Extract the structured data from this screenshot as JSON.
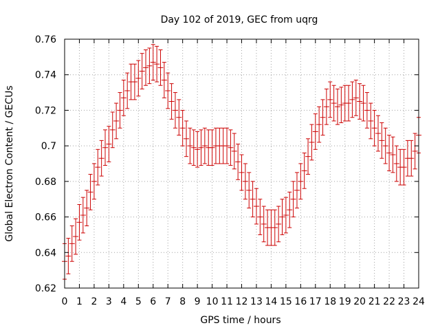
{
  "chart_data": {
    "type": "scatter",
    "title": "Day 102 of 2019, GEC from uqrg",
    "xlabel": "GPS time / hours",
    "ylabel": "Global Electron Content / GECUs",
    "xlim": [
      0,
      24
    ],
    "ylim": [
      0.62,
      0.76
    ],
    "x_ticks": [
      "0",
      "1",
      "2",
      "3",
      "4",
      "5",
      "6",
      "7",
      "8",
      "9",
      "10",
      "11",
      "12",
      "13",
      "14",
      "15",
      "16",
      "17",
      "18",
      "19",
      "20",
      "21",
      "22",
      "23",
      "24"
    ],
    "x_tick_values": [
      0,
      1,
      2,
      3,
      4,
      5,
      6,
      7,
      8,
      9,
      10,
      11,
      12,
      13,
      14,
      15,
      16,
      17,
      18,
      19,
      20,
      21,
      22,
      23,
      24
    ],
    "y_ticks": [
      "0.62",
      "0.64",
      "0.66",
      "0.68",
      "0.7",
      "0.72",
      "0.74",
      "0.76"
    ],
    "y_tick_values": [
      0.62,
      0.64,
      0.66,
      0.68,
      0.7,
      0.72,
      0.74,
      0.76
    ],
    "grid": true,
    "error": 0.01,
    "series": [
      {
        "name": "GEC",
        "color": "#cc0000",
        "x": [
          0,
          0.25,
          0.5,
          0.75,
          1,
          1.25,
          1.5,
          1.75,
          2,
          2.25,
          2.5,
          2.75,
          3,
          3.25,
          3.5,
          3.75,
          4,
          4.25,
          4.5,
          4.75,
          5,
          5.25,
          5.5,
          5.75,
          6,
          6.25,
          6.5,
          6.75,
          7,
          7.25,
          7.5,
          7.75,
          8,
          8.25,
          8.5,
          8.75,
          9,
          9.25,
          9.5,
          9.75,
          10,
          10.25,
          10.5,
          10.75,
          11,
          11.25,
          11.5,
          11.75,
          12,
          12.25,
          12.5,
          12.75,
          13,
          13.25,
          13.5,
          13.75,
          14,
          14.25,
          14.5,
          14.75,
          15,
          15.25,
          15.5,
          15.75,
          16,
          16.25,
          16.5,
          16.75,
          17,
          17.25,
          17.5,
          17.75,
          18,
          18.25,
          18.5,
          18.75,
          19,
          19.25,
          19.5,
          19.75,
          20,
          20.25,
          20.5,
          20.75,
          21,
          21.25,
          21.5,
          21.75,
          22,
          22.25,
          22.5,
          22.75,
          23,
          23.25,
          23.5,
          23.75,
          24
        ],
        "y": [
          0.635,
          0.638,
          0.645,
          0.649,
          0.657,
          0.661,
          0.665,
          0.674,
          0.68,
          0.688,
          0.693,
          0.699,
          0.701,
          0.709,
          0.714,
          0.72,
          0.727,
          0.731,
          0.736,
          0.736,
          0.738,
          0.742,
          0.744,
          0.745,
          0.747,
          0.746,
          0.744,
          0.737,
          0.731,
          0.725,
          0.72,
          0.716,
          0.71,
          0.704,
          0.7,
          0.699,
          0.698,
          0.699,
          0.7,
          0.699,
          0.699,
          0.7,
          0.7,
          0.7,
          0.7,
          0.699,
          0.697,
          0.691,
          0.685,
          0.68,
          0.675,
          0.67,
          0.666,
          0.66,
          0.656,
          0.654,
          0.654,
          0.654,
          0.656,
          0.66,
          0.661,
          0.664,
          0.67,
          0.675,
          0.68,
          0.686,
          0.694,
          0.702,
          0.708,
          0.712,
          0.716,
          0.722,
          0.726,
          0.724,
          0.722,
          0.723,
          0.724,
          0.724,
          0.726,
          0.727,
          0.725,
          0.724,
          0.72,
          0.714,
          0.71,
          0.707,
          0.703,
          0.7,
          0.696,
          0.695,
          0.69,
          0.688,
          0.688,
          0.693,
          0.693,
          0.697,
          0.706
        ]
      }
    ]
  }
}
